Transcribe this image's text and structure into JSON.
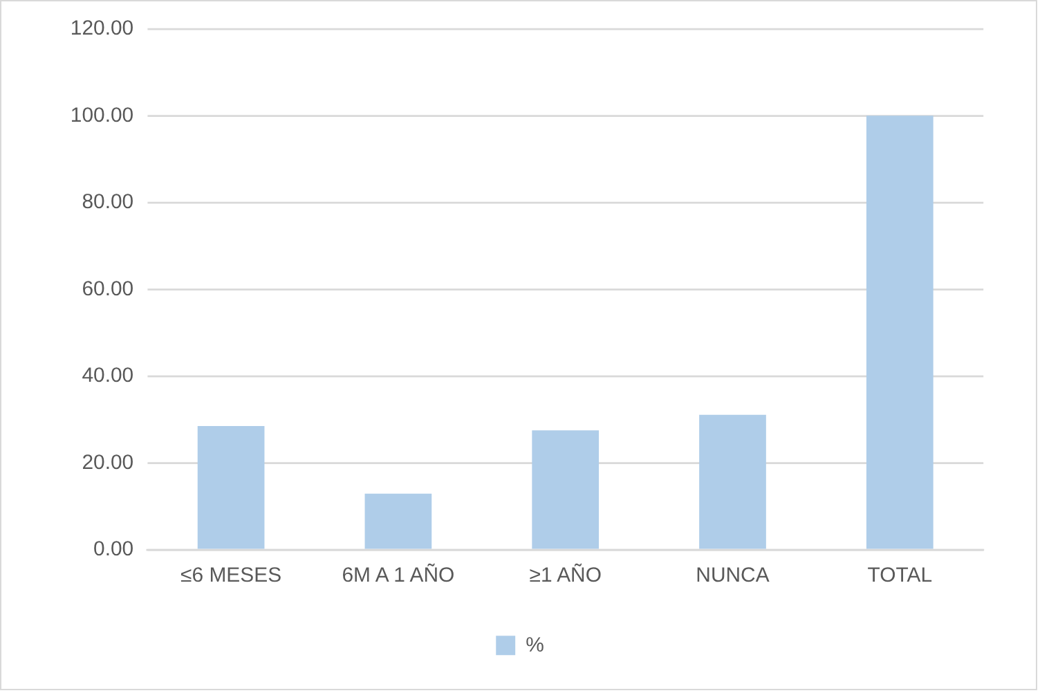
{
  "chart_data": {
    "type": "bar",
    "categories": [
      "≤6 MESES",
      "6M A 1 AÑO",
      "≥1 AÑO",
      "NUNCA",
      "TOTAL"
    ],
    "series": [
      {
        "name": "%",
        "color": "#afcde9",
        "values": [
          28.5,
          12.9,
          27.5,
          31.1,
          100
        ]
      }
    ],
    "ylim": [
      0,
      120
    ],
    "yticks": [
      {
        "value": 0,
        "label": "0.00"
      },
      {
        "value": 20,
        "label": "20.00"
      },
      {
        "value": 40,
        "label": "40.00"
      },
      {
        "value": 60,
        "label": "60.00"
      },
      {
        "value": 80,
        "label": "80.00"
      },
      {
        "value": 100,
        "label": "100.00"
      },
      {
        "value": 120,
        "label": "120.00"
      }
    ],
    "grid": "y",
    "legend": "bottom"
  }
}
